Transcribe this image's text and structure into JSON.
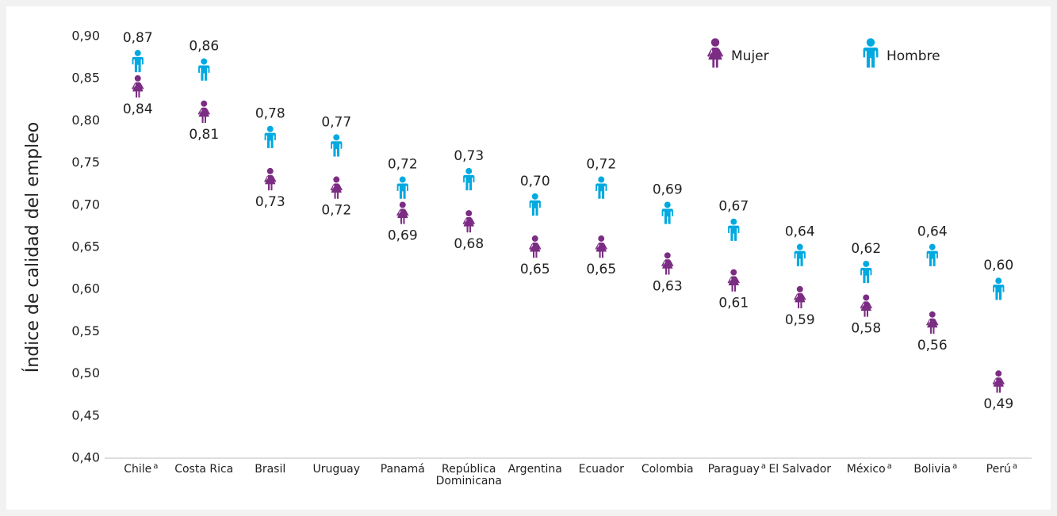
{
  "chart_data": {
    "type": "scatter",
    "y_label": "Índice de calidad del empleo",
    "categories": [
      "Chile",
      "Costa Rica",
      "Brasil",
      "Uruguay",
      "Panamá",
      "República Dominicana",
      "Argentina",
      "Ecuador",
      "Colombia",
      "Paraguay",
      "El Salvador",
      "México",
      "Bolivia",
      "Perú"
    ],
    "category_notes": [
      "a",
      null,
      null,
      null,
      null,
      null,
      null,
      null,
      null,
      "a",
      null,
      "a",
      "a",
      "a"
    ],
    "series": [
      {
        "name": "Mujer",
        "color": "#7b2c83",
        "values": [
          0.84,
          0.81,
          0.73,
          0.72,
          0.69,
          0.68,
          0.65,
          0.65,
          0.63,
          0.61,
          0.59,
          0.58,
          0.56,
          0.49
        ],
        "value_labels": [
          "0,84",
          "0,81",
          "0,73",
          "0,72",
          "0,69",
          "0,68",
          "0,65",
          "0,65",
          "0,63",
          "0,61",
          "0,59",
          "0,58",
          "0,56",
          "0,49"
        ]
      },
      {
        "name": "Hombre",
        "color": "#00a9e0",
        "values": [
          0.87,
          0.86,
          0.78,
          0.77,
          0.72,
          0.73,
          0.7,
          0.72,
          0.69,
          0.67,
          0.64,
          0.62,
          0.64,
          0.6
        ],
        "value_labels": [
          "0,87",
          "0,86",
          "0,78",
          "0,77",
          "0,72",
          "0,73",
          "0,70",
          "0,72",
          "0,69",
          "0,67",
          "0,64",
          "0,62",
          "0,64",
          "0,60"
        ]
      }
    ],
    "ylim": [
      0.4,
      0.9
    ],
    "yticks": [
      {
        "value": 0.4,
        "label": "0,40"
      },
      {
        "value": 0.45,
        "label": "0,45"
      },
      {
        "value": 0.5,
        "label": "0,50"
      },
      {
        "value": 0.55,
        "label": "0,55"
      },
      {
        "value": 0.6,
        "label": "0,60"
      },
      {
        "value": 0.65,
        "label": "0,65"
      },
      {
        "value": 0.7,
        "label": "0,70"
      },
      {
        "value": 0.75,
        "label": "0,75"
      },
      {
        "value": 0.8,
        "label": "0,80"
      },
      {
        "value": 0.85,
        "label": "0,85"
      },
      {
        "value": 0.9,
        "label": "0,90"
      }
    ],
    "legend": "top-right"
  }
}
